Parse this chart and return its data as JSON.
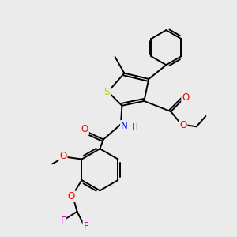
{
  "background_color": "#ebebeb",
  "atom_colors": {
    "S": "#cccc00",
    "N": "#0000ff",
    "O": "#ff0000",
    "F": "#cc00cc",
    "C": "#000000",
    "H": "#008080"
  },
  "bond_color": "#000000",
  "figsize": [
    3.0,
    3.0
  ],
  "dpi": 100,
  "xlim": [
    0,
    10
  ],
  "ylim": [
    0,
    10
  ]
}
